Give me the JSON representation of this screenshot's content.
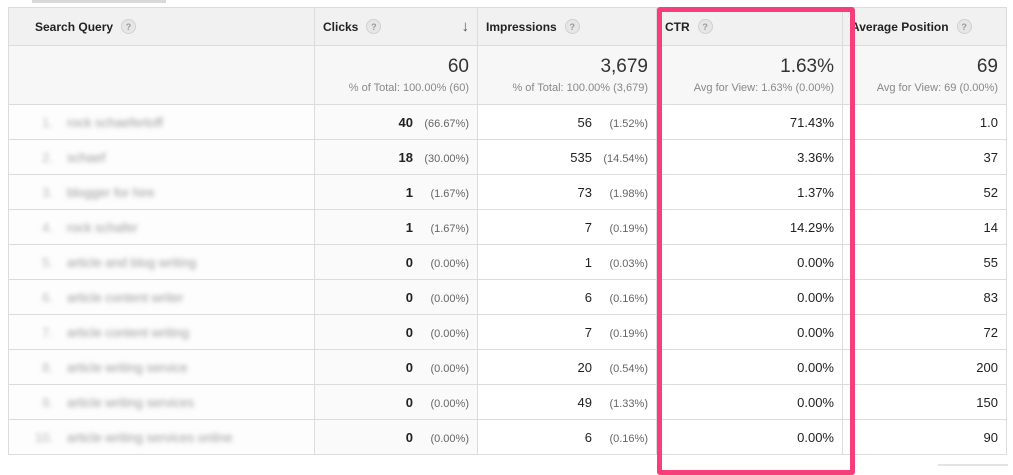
{
  "columns": {
    "query": "Search Query",
    "clicks": "Clicks",
    "impressions": "Impressions",
    "ctr": "CTR",
    "position": "Average Position"
  },
  "help_glyph": "?",
  "sort_glyph": "↓",
  "totals": {
    "clicks": {
      "value": "60",
      "sub": "% of Total: 100.00% (60)"
    },
    "impressions": {
      "value": "3,679",
      "sub": "% of Total: 100.00% (3,679)"
    },
    "ctr": {
      "value": "1.63%",
      "sub": "Avg for View: 1.63% (0.00%)"
    },
    "position": {
      "value": "69",
      "sub": "Avg for View: 69 (0.00%)"
    }
  },
  "rows": [
    {
      "num": "1.",
      "query": "rock schaefertoff",
      "clicks": "40",
      "clicks_pct": "(66.67%)",
      "impressions": "56",
      "impressions_pct": "(1.52%)",
      "ctr": "71.43%",
      "position": "1.0"
    },
    {
      "num": "2.",
      "query": "schaef",
      "clicks": "18",
      "clicks_pct": "(30.00%)",
      "impressions": "535",
      "impressions_pct": "(14.54%)",
      "ctr": "3.36%",
      "position": "37"
    },
    {
      "num": "3.",
      "query": "blogger for hire",
      "clicks": "1",
      "clicks_pct": "(1.67%)",
      "impressions": "73",
      "impressions_pct": "(1.98%)",
      "ctr": "1.37%",
      "position": "52"
    },
    {
      "num": "4.",
      "query": "rock schafer",
      "clicks": "1",
      "clicks_pct": "(1.67%)",
      "impressions": "7",
      "impressions_pct": "(0.19%)",
      "ctr": "14.29%",
      "position": "14"
    },
    {
      "num": "5.",
      "query": "article and blog writing",
      "clicks": "0",
      "clicks_pct": "(0.00%)",
      "impressions": "1",
      "impressions_pct": "(0.03%)",
      "ctr": "0.00%",
      "position": "55"
    },
    {
      "num": "6.",
      "query": "article content writer",
      "clicks": "0",
      "clicks_pct": "(0.00%)",
      "impressions": "6",
      "impressions_pct": "(0.16%)",
      "ctr": "0.00%",
      "position": "83"
    },
    {
      "num": "7.",
      "query": "article content writing",
      "clicks": "0",
      "clicks_pct": "(0.00%)",
      "impressions": "7",
      "impressions_pct": "(0.19%)",
      "ctr": "0.00%",
      "position": "72"
    },
    {
      "num": "8.",
      "query": "article writing service",
      "clicks": "0",
      "clicks_pct": "(0.00%)",
      "impressions": "20",
      "impressions_pct": "(0.54%)",
      "ctr": "0.00%",
      "position": "200"
    },
    {
      "num": "9.",
      "query": "article writing services",
      "clicks": "0",
      "clicks_pct": "(0.00%)",
      "impressions": "49",
      "impressions_pct": "(1.33%)",
      "ctr": "0.00%",
      "position": "150"
    },
    {
      "num": "10.",
      "query": "article writing services online",
      "clicks": "0",
      "clicks_pct": "(0.00%)",
      "impressions": "6",
      "impressions_pct": "(0.16%)",
      "ctr": "0.00%",
      "position": "90"
    }
  ],
  "colors": {
    "highlight": "#f53e7a",
    "header_bg": "#f1f1f1",
    "border": "#dcdcdc"
  }
}
